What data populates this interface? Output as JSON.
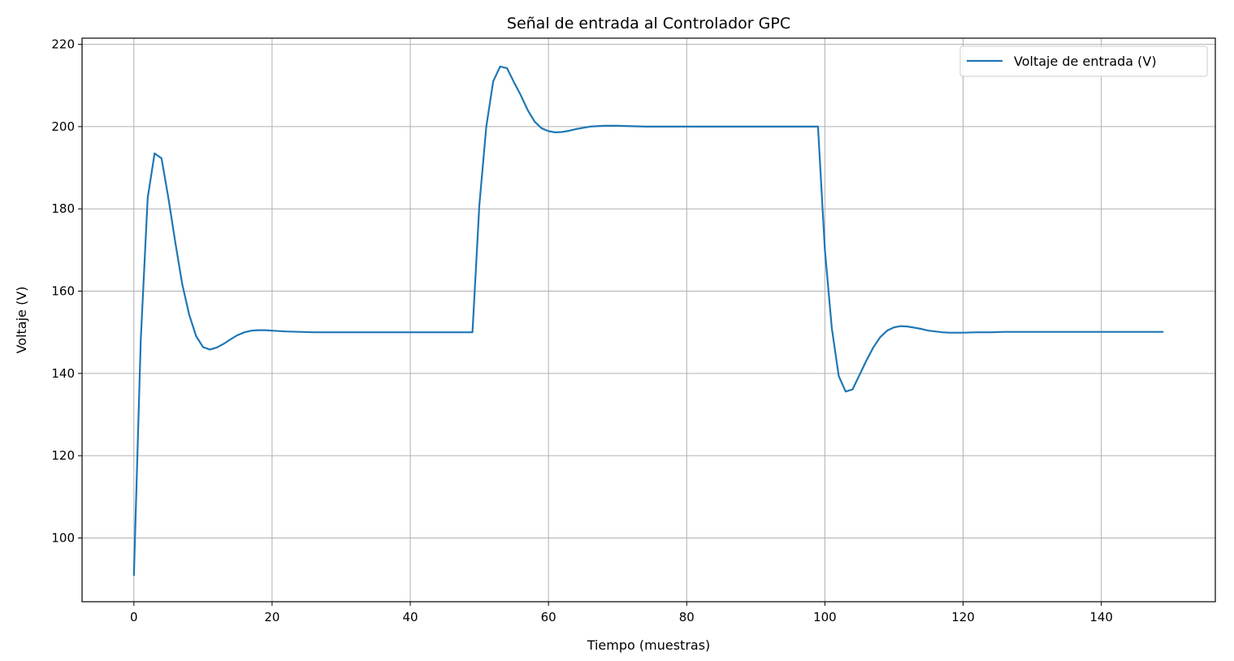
{
  "chart_data": {
    "type": "line",
    "title": "Señal de entrada al Controlador GPC",
    "xlabel": "Tiempo (muestras)",
    "ylabel": "Voltaje (V)",
    "xlim": [
      -7.5,
      156.5
    ],
    "ylim": [
      84.5,
      221.5
    ],
    "xticks": [
      0,
      20,
      40,
      60,
      80,
      100,
      120,
      140
    ],
    "yticks": [
      100,
      120,
      140,
      160,
      180,
      200,
      220
    ],
    "grid": true,
    "legend_position": "top-right",
    "line_color": "#1f77b4",
    "series": [
      {
        "name": "Voltaje de entrada (V)",
        "x": [
          0,
          1,
          2,
          3,
          4,
          5,
          6,
          7,
          8,
          9,
          10,
          11,
          12,
          13,
          14,
          15,
          16,
          17,
          18,
          19,
          20,
          22,
          24,
          26,
          28,
          30,
          35,
          40,
          45,
          49,
          50,
          51,
          52,
          53,
          54,
          55,
          56,
          57,
          58,
          59,
          60,
          61,
          62,
          63,
          64,
          65,
          66,
          67,
          68,
          69,
          70,
          72,
          74,
          76,
          78,
          80,
          85,
          90,
          95,
          99,
          100,
          101,
          102,
          103,
          104,
          105,
          106,
          107,
          108,
          109,
          110,
          111,
          112,
          113,
          114,
          115,
          116,
          117,
          118,
          119,
          120,
          122,
          124,
          126,
          130,
          135,
          140,
          145,
          149
        ],
        "values": [
          90.8,
          148.3,
          182.7,
          193.5,
          192.3,
          182.6,
          171.8,
          161.7,
          154.3,
          149.1,
          146.4,
          145.8,
          146.3,
          147.2,
          148.3,
          149.3,
          150.0,
          150.4,
          150.5,
          150.5,
          150.4,
          150.2,
          150.1,
          150.0,
          150.0,
          150.0,
          150.0,
          150.0,
          150.0,
          150.0,
          181.0,
          200.0,
          211.0,
          214.6,
          214.2,
          210.8,
          207.6,
          204.0,
          201.2,
          199.6,
          198.9,
          198.6,
          198.7,
          199.0,
          199.4,
          199.7,
          200.0,
          200.1,
          200.2,
          200.2,
          200.2,
          200.1,
          200.0,
          200.0,
          200.0,
          200.0,
          200.0,
          200.0,
          200.0,
          200.0,
          170.0,
          151.0,
          139.4,
          135.6,
          136.1,
          139.6,
          143.1,
          146.3,
          148.8,
          150.4,
          151.2,
          151.5,
          151.4,
          151.1,
          150.8,
          150.4,
          150.2,
          150.0,
          149.9,
          149.9,
          149.9,
          150.0,
          150.0,
          150.1,
          150.1,
          150.1,
          150.1,
          150.1,
          150.1
        ]
      }
    ]
  }
}
